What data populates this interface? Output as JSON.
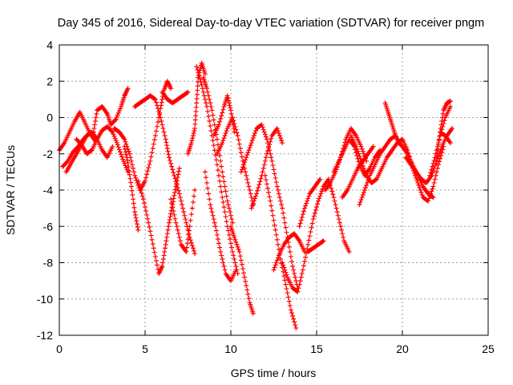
{
  "chart_data": {
    "type": "scatter",
    "title": "Day 345 of 2016, Sidereal Day-to-day VTEC variation (SDTVAR) for receiver pngm",
    "xlabel": "GPS time / hours",
    "ylabel": "SDTVAR / TECUs",
    "xlim": [
      0,
      25
    ],
    "ylim": [
      -12,
      4
    ],
    "xticks": [
      "0",
      "5",
      "10",
      "15",
      "20",
      "25"
    ],
    "yticks": [
      "-12",
      "-10",
      "-8",
      "-6",
      "-4",
      "-2",
      "0",
      "2",
      "4"
    ],
    "grid": true,
    "marker": "plus",
    "color": "#ff0000",
    "series": [
      {
        "x": [
          0.0,
          0.3,
          0.6,
          0.9,
          1.2,
          1.5,
          1.8,
          2.1
        ],
        "y": [
          -1.8,
          -1.4,
          -0.8,
          -0.2,
          0.3,
          -0.3,
          -0.9,
          -1.3
        ]
      },
      {
        "x": [
          0.2,
          0.5,
          0.8,
          1.1,
          1.4,
          1.7
        ],
        "y": [
          -2.7,
          -2.4,
          -1.9,
          -1.6,
          -1.2,
          -0.9
        ]
      },
      {
        "x": [
          0.4,
          0.7,
          1.0,
          1.3,
          1.6,
          1.9,
          2.2,
          2.5,
          2.8,
          3.1
        ],
        "y": [
          -3.0,
          -2.5,
          -2.0,
          -1.5,
          -1.0,
          -0.8,
          -1.2,
          -1.8,
          -2.2,
          -1.6
        ]
      },
      {
        "x": [
          1.0,
          1.3,
          1.6,
          1.9,
          2.2,
          2.5,
          2.8,
          3.1,
          3.4,
          3.7,
          4.0
        ],
        "y": [
          -1.2,
          -1.5,
          -2.0,
          -1.8,
          -1.2,
          -0.7,
          -0.5,
          -0.8,
          -1.5,
          -2.3,
          -3.0
        ]
      },
      {
        "x": [
          2.0,
          2.2,
          2.5,
          2.8,
          3.0,
          3.3,
          3.6,
          3.8,
          4.0
        ],
        "y": [
          -0.8,
          0.4,
          0.6,
          0.2,
          -0.4,
          -0.1,
          0.6,
          1.2,
          1.6
        ]
      },
      {
        "x": [
          3.2,
          3.5,
          3.8,
          4.1,
          4.4,
          4.7,
          5.0,
          5.3,
          5.6,
          5.9,
          6.1,
          6.3,
          6.5
        ],
        "y": [
          -0.6,
          -0.8,
          -1.2,
          -2.0,
          -3.2,
          -4.0,
          -3.5,
          -2.4,
          -1.0,
          0.5,
          1.5,
          2.0,
          1.6
        ]
      },
      {
        "x": [
          3.8,
          4.0,
          4.2,
          4.4,
          4.6
        ],
        "y": [
          -1.6,
          -2.5,
          -3.8,
          -5.2,
          -6.2
        ]
      },
      {
        "x": [
          4.4,
          4.7,
          5.0,
          5.3,
          5.6,
          5.9,
          6.2,
          6.4,
          6.7,
          7.0,
          7.3,
          7.6,
          7.9
        ],
        "y": [
          0.6,
          0.8,
          1.0,
          1.2,
          1.0,
          0.0,
          -1.2,
          -2.2,
          -3.2,
          -4.2,
          -5.4,
          -6.6,
          -7.5
        ]
      },
      {
        "x": [
          4.6,
          4.9,
          5.2,
          5.5,
          5.8,
          6.0,
          6.2,
          6.4,
          6.6,
          6.8,
          7.0
        ],
        "y": [
          -3.5,
          -4.5,
          -5.8,
          -7.2,
          -8.6,
          -8.2,
          -7.0,
          -5.8,
          -4.8,
          -3.8,
          -2.8
        ]
      },
      {
        "x": [
          6.0,
          6.3,
          6.6,
          6.9,
          7.2,
          7.5
        ],
        "y": [
          1.4,
          1.0,
          0.8,
          1.0,
          1.2,
          1.4
        ]
      },
      {
        "x": [
          6.5,
          6.8,
          7.1,
          7.4,
          7.6,
          7.9
        ],
        "y": [
          -4.5,
          -5.8,
          -7.0,
          -7.4,
          -6.0,
          -4.0
        ]
      },
      {
        "x": [
          7.5,
          7.7,
          7.9,
          8.0,
          8.1,
          8.3,
          8.5
        ],
        "y": [
          -2.0,
          -1.4,
          -0.6,
          0.8,
          2.2,
          3.0,
          2.4
        ]
      },
      {
        "x": [
          8.0,
          8.3,
          8.6,
          8.9,
          9.2,
          9.5,
          9.8,
          10.1,
          10.4
        ],
        "y": [
          2.8,
          1.8,
          0.6,
          -1.0,
          -2.6,
          -4.4,
          -6.0,
          -7.4,
          -8.6
        ]
      },
      {
        "x": [
          8.4,
          8.6,
          8.9,
          9.2,
          9.5,
          9.8,
          10.1
        ],
        "y": [
          2.2,
          1.6,
          0.4,
          -1.2,
          -3.0,
          -4.6,
          -5.8
        ]
      },
      {
        "x": [
          8.5,
          8.8,
          9.1,
          9.4,
          9.7,
          10.0,
          10.3
        ],
        "y": [
          -3.0,
          -4.8,
          -6.0,
          -7.4,
          -8.6,
          -9.0,
          -8.4
        ]
      },
      {
        "x": [
          9.0,
          9.3,
          9.6,
          9.8,
          10.0,
          10.2
        ],
        "y": [
          -1.0,
          -0.4,
          0.6,
          1.2,
          0.4,
          -0.8
        ]
      },
      {
        "x": [
          9.2,
          9.5,
          9.8,
          10.1,
          10.4,
          10.7,
          11.0,
          11.3
        ],
        "y": [
          -2.0,
          -1.4,
          -0.6,
          0.0,
          -1.0,
          -2.4,
          -3.6,
          -4.8
        ]
      },
      {
        "x": [
          10.0,
          10.2,
          10.5,
          10.8,
          11.1,
          11.3
        ],
        "y": [
          -6.0,
          -6.6,
          -7.4,
          -8.8,
          -10.2,
          -10.8
        ]
      },
      {
        "x": [
          10.6,
          10.9,
          11.2,
          11.5,
          11.8,
          12.1,
          12.4,
          12.7,
          13.0,
          13.3,
          13.6,
          13.9
        ],
        "y": [
          -3.0,
          -2.2,
          -1.4,
          -0.6,
          -0.4,
          -1.2,
          -2.4,
          -3.8,
          -5.0,
          -6.6,
          -8.2,
          -9.4
        ]
      },
      {
        "x": [
          11.2,
          11.5,
          11.8,
          12.1,
          12.4,
          12.7,
          13.0
        ],
        "y": [
          -5.0,
          -4.2,
          -3.2,
          -2.0,
          -1.0,
          -0.6,
          -1.4
        ]
      },
      {
        "x": [
          12.0,
          12.3,
          12.6,
          12.9,
          13.2,
          13.5,
          13.8
        ],
        "y": [
          -3.2,
          -4.6,
          -6.2,
          -7.8,
          -9.2,
          -10.6,
          -11.6
        ]
      },
      {
        "x": [
          12.5,
          12.8,
          13.1,
          13.4,
          13.7,
          14.0,
          14.3
        ],
        "y": [
          -8.4,
          -7.6,
          -7.0,
          -6.6,
          -6.4,
          -6.8,
          -7.4
        ]
      },
      {
        "x": [
          13.0,
          13.3,
          13.6,
          13.9,
          14.2,
          14.5,
          14.8,
          15.1,
          15.4,
          15.7,
          16.0,
          16.3,
          16.6,
          16.9
        ],
        "y": [
          -8.0,
          -8.8,
          -9.4,
          -9.6,
          -8.4,
          -7.0,
          -5.6,
          -4.6,
          -3.8,
          -3.4,
          -4.4,
          -5.6,
          -6.8,
          -7.4
        ]
      },
      {
        "x": [
          14.0,
          14.3,
          14.6,
          14.9,
          15.2
        ],
        "y": [
          -6.0,
          -5.0,
          -4.2,
          -3.8,
          -3.4
        ]
      },
      {
        "x": [
          14.5,
          14.8,
          15.1,
          15.4
        ],
        "y": [
          -7.4,
          -7.2,
          -7.0,
          -6.8
        ]
      },
      {
        "x": [
          15.5,
          15.8,
          16.1,
          16.4,
          16.7,
          17.0,
          17.3,
          17.6,
          17.9
        ],
        "y": [
          -4.0,
          -3.6,
          -3.0,
          -2.2,
          -1.2,
          -0.6,
          -1.0,
          -1.6,
          -2.4
        ]
      },
      {
        "x": [
          16.0,
          16.3,
          16.6,
          16.9,
          17.2,
          17.5,
          17.8,
          18.1,
          18.4,
          18.7
        ],
        "y": [
          -3.0,
          -2.4,
          -1.8,
          -1.2,
          -1.6,
          -2.6,
          -3.2,
          -2.8,
          -2.2,
          -1.8
        ]
      },
      {
        "x": [
          16.5,
          16.8,
          17.1,
          17.4,
          17.7,
          18.0,
          18.3
        ],
        "y": [
          -4.4,
          -4.0,
          -3.4,
          -2.8,
          -2.4,
          -2.0,
          -1.6
        ]
      },
      {
        "x": [
          17.0,
          17.3,
          17.6,
          17.9,
          18.2,
          18.5,
          18.8,
          19.1,
          19.4,
          19.7,
          20.0
        ],
        "y": [
          -1.0,
          -1.6,
          -2.4,
          -3.2,
          -3.6,
          -3.4,
          -2.8,
          -2.2,
          -1.8,
          -1.4,
          -1.2
        ]
      },
      {
        "x": [
          17.5,
          17.8,
          18.1,
          18.4,
          18.7,
          19.0,
          19.3,
          19.6
        ],
        "y": [
          -4.8,
          -4.0,
          -3.2,
          -2.6,
          -2.0,
          -1.6,
          -1.2,
          -1.0
        ]
      },
      {
        "x": [
          19.0,
          19.2,
          19.4,
          19.6,
          19.8,
          20.0,
          20.3,
          20.6,
          20.9,
          21.2,
          21.5,
          21.8
        ],
        "y": [
          0.8,
          0.2,
          -0.4,
          -1.0,
          -1.4,
          -1.6,
          -2.0,
          -2.6,
          -3.2,
          -3.8,
          -4.2,
          -4.4
        ]
      },
      {
        "x": [
          20.0,
          20.3,
          20.6,
          20.9,
          21.2,
          21.5,
          21.8,
          22.1,
          22.4
        ],
        "y": [
          -1.2,
          -1.8,
          -2.8,
          -3.6,
          -4.4,
          -4.6,
          -3.8,
          -2.6,
          -1.6
        ]
      },
      {
        "x": [
          20.2,
          20.5,
          20.8,
          21.1,
          21.4,
          21.7,
          22.0,
          22.3,
          22.6,
          22.9
        ],
        "y": [
          -2.2,
          -2.6,
          -3.0,
          -3.4,
          -3.6,
          -3.2,
          -2.4,
          -1.6,
          -1.0,
          -0.6
        ]
      },
      {
        "x": [
          21.6,
          21.9,
          22.2,
          22.5,
          22.8
        ],
        "y": [
          -3.2,
          -2.2,
          -1.0,
          0.0,
          0.6
        ]
      },
      {
        "x": [
          22.0,
          22.2,
          22.4,
          22.6,
          22.8
        ],
        "y": [
          -2.2,
          -0.8,
          0.4,
          0.8,
          0.9
        ]
      },
      {
        "x": [
          22.2,
          22.5,
          22.8
        ],
        "y": [
          -0.8,
          -1.0,
          -1.4
        ]
      }
    ]
  }
}
